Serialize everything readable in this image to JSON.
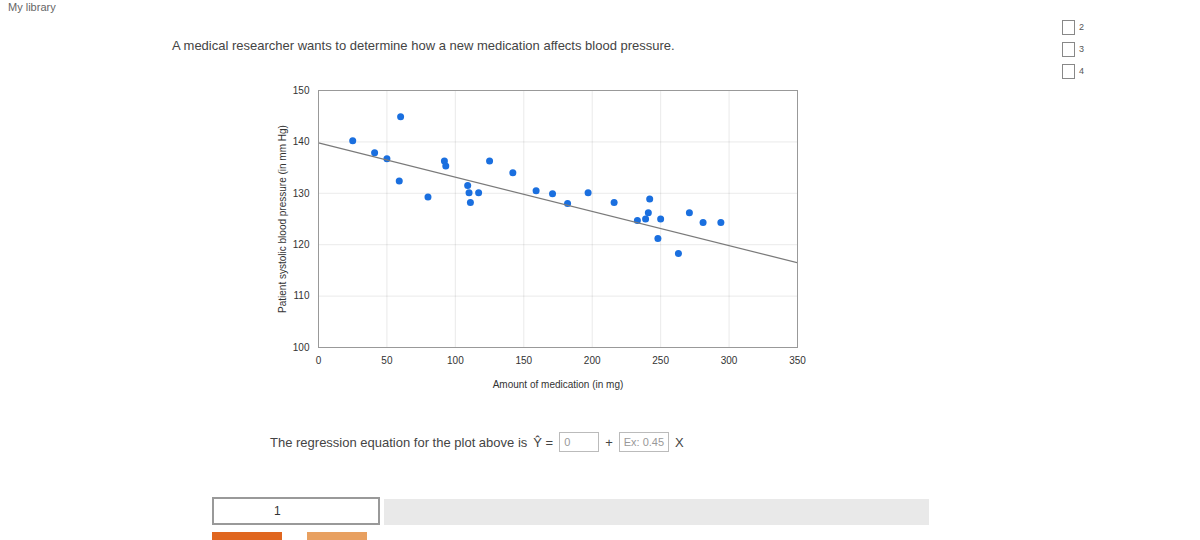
{
  "page": {
    "crumb": "My library",
    "question": "A medical researcher wants to determine how a new medication affects blood pressure.",
    "equation": {
      "text": "The regression equation for the plot above is",
      "lhs": "Ŷ =",
      "intercept_box": "0",
      "plus": "+",
      "slope_box": "Ex: 0.45",
      "variable": "X"
    },
    "answer_box": "1",
    "side_items": [
      "2",
      "3",
      "4"
    ]
  },
  "chart_data": {
    "type": "scatter",
    "title": null,
    "x_label": "Amount of medication (in mg)",
    "y_label": "Patient systolic blood pressure (in mm Hg)",
    "xlim": [
      0,
      350
    ],
    "xticks": [
      0,
      50,
      100,
      150,
      200,
      250,
      300,
      350
    ],
    "ylim": [
      100,
      150
    ],
    "yticks": [
      100,
      110,
      120,
      130,
      140,
      150
    ],
    "grid": true,
    "series": [
      {
        "type": "scatter",
        "color": "#1a6fdf",
        "marker": "circle",
        "x": [
          25,
          41,
          50,
          60,
          59,
          80,
          92,
          93,
          109,
          110,
          111,
          117,
          125,
          142,
          159,
          171,
          182,
          197,
          216,
          242,
          233,
          239,
          241,
          250,
          248,
          263,
          271,
          281,
          294
        ],
        "values": [
          140.2,
          137.9,
          136.7,
          144.9,
          132.4,
          129.3,
          136.3,
          135.3,
          131.5,
          130.1,
          128.2,
          130.1,
          136.3,
          134,
          130.5,
          129.9,
          128,
          130.1,
          128.2,
          128.9,
          124.7,
          125,
          126.2,
          125,
          121.2,
          118.3,
          126.2,
          124.3,
          124.3
        ]
      },
      {
        "type": "line",
        "color": "#7a7a7a",
        "line_style": "solid",
        "x": [
          0,
          350
        ],
        "values": [
          139.8,
          116.5
        ]
      }
    ]
  }
}
